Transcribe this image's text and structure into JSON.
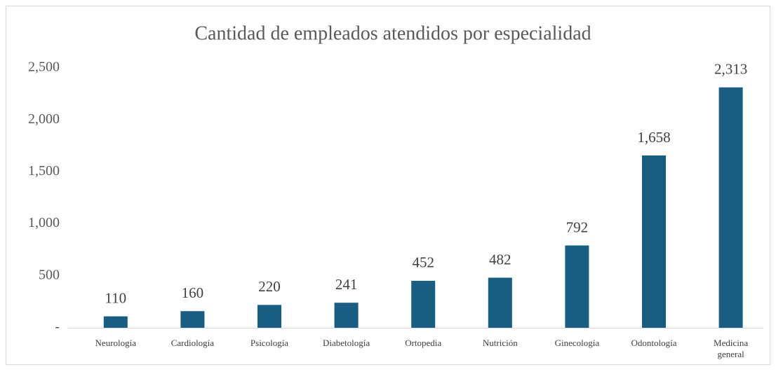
{
  "chart_data": {
    "type": "bar",
    "title": "Cantidad de empleados atendidos por especialidad",
    "categories": [
      "Neurología",
      "Cardiología",
      "Psicología",
      "Diabetología",
      "Ortopedia",
      "Nutrición",
      "Ginecología",
      "Odontología",
      "Medicina general"
    ],
    "values": [
      110,
      160,
      220,
      241,
      452,
      482,
      792,
      1658,
      2313
    ],
    "value_labels": [
      "110",
      "160",
      "220",
      "241",
      "452",
      "482",
      "792",
      "1,658",
      "2,313"
    ],
    "color": "#175e82",
    "ylim": [
      0,
      2500
    ],
    "yticks": [
      {
        "value": 0,
        "label": "-"
      },
      500,
      {
        "value": 1000,
        "label": "1,000"
      },
      {
        "value": 1500,
        "label": "1,500"
      },
      {
        "value": 2000,
        "label": "2,000"
      },
      {
        "value": 2500,
        "label": "2,500"
      }
    ],
    "grid": false
  }
}
